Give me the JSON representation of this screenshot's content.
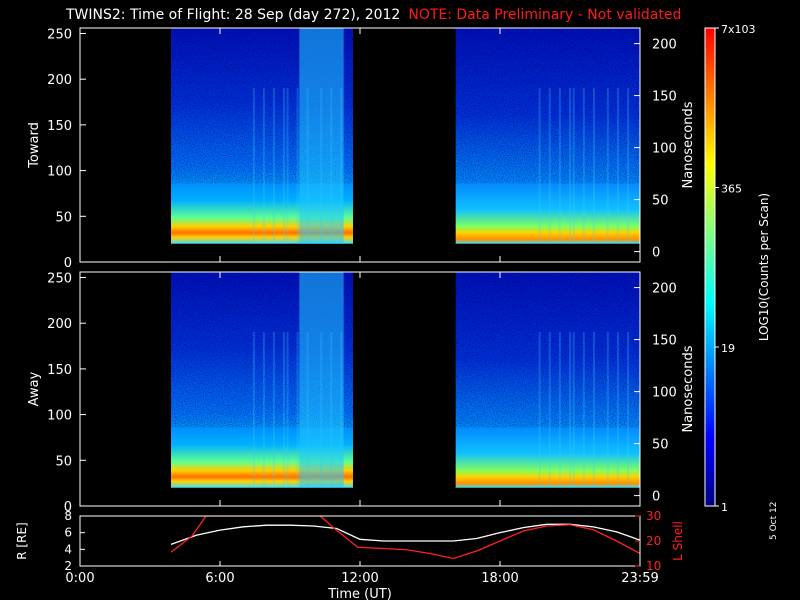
{
  "header": {
    "title": "TWINS2: Time of Flight: 28 Sep (day 272), 2012",
    "note": "NOTE: Data Preliminary - Not validated",
    "note_color": "#ff1a1a"
  },
  "stamp": "5 Oct 12",
  "panels": [
    {
      "ylabel": "Toward",
      "right_label": "Nanoseconds"
    },
    {
      "ylabel": "Away",
      "right_label": "Nanoseconds"
    }
  ],
  "colorbar": {
    "label": "LOG10(Counts per Scan)",
    "ticks": [
      "7x10^3",
      "365",
      "19",
      "1"
    ],
    "tick_values": [
      7000,
      365,
      19,
      1
    ],
    "colors": [
      "#000080",
      "#0000ff",
      "#0080ff",
      "#00ffff",
      "#80ff80",
      "#ffff00",
      "#ff8000",
      "#ff0000"
    ]
  },
  "ephem": {
    "left_label": "R [RE]",
    "right_label": "L Shell",
    "left_color": "#ffffff",
    "right_color": "#ff2020"
  },
  "xaxis": {
    "label": "Time (UT)",
    "tick_labels": [
      "0:00",
      "6:00",
      "12:00",
      "18:00",
      "23:59"
    ]
  },
  "chart_data": [
    {
      "type": "heatmap",
      "title": "Toward",
      "xlabel": "",
      "ylabel": "Toward",
      "y2label": "Nanoseconds",
      "xlim": [
        0,
        24
      ],
      "ylim": [
        0,
        256
      ],
      "y2lim": [
        -10,
        215
      ],
      "yticks": [
        0,
        50,
        100,
        150,
        200,
        250
      ],
      "y2ticks": [
        0,
        50,
        100,
        150,
        200
      ],
      "data_intervals_hours": [
        [
          3.9,
          11.7
        ],
        [
          16.1,
          24.0
        ]
      ],
      "colorscale": "log",
      "crange": [
        1,
        7000
      ]
    },
    {
      "type": "heatmap",
      "title": "Away",
      "xlabel": "",
      "ylabel": "Away",
      "y2label": "Nanoseconds",
      "xlim": [
        0,
        24
      ],
      "ylim": [
        0,
        256
      ],
      "y2lim": [
        -10,
        215
      ],
      "yticks": [
        0,
        50,
        100,
        150,
        200,
        250
      ],
      "y2ticks": [
        0,
        50,
        100,
        150,
        200
      ],
      "data_intervals_hours": [
        [
          3.9,
          11.7
        ],
        [
          16.1,
          24.0
        ]
      ],
      "colorscale": "log",
      "crange": [
        1,
        7000
      ]
    },
    {
      "type": "line",
      "xlabel": "Time (UT)",
      "ylabel": "R [RE]",
      "y2label": "L Shell",
      "xlim": [
        0,
        24
      ],
      "ylim": [
        2,
        8
      ],
      "yticks": [
        2,
        4,
        6,
        8
      ],
      "y2lim": [
        10,
        30
      ],
      "y2ticks": [
        10,
        20,
        30
      ],
      "series": [
        {
          "axis": "left",
          "color": "#ffffff",
          "x": [
            3.9,
            5,
            6,
            7,
            8,
            9,
            10,
            11,
            12,
            13,
            14,
            15,
            16,
            17,
            18,
            19,
            20,
            21,
            22,
            23,
            24
          ],
          "values": [
            4.6,
            5.7,
            6.3,
            6.7,
            6.9,
            6.9,
            6.8,
            6.5,
            5.2,
            5.0,
            5.0,
            5.0,
            5.0,
            5.3,
            6.0,
            6.6,
            7.0,
            7.0,
            6.7,
            6.1,
            5.1
          ]
        },
        {
          "axis": "right",
          "color": "#ff2020",
          "x": [
            3.9,
            4.8,
            5.4,
            10.3,
            10.9,
            11.9,
            13,
            14,
            15,
            16,
            17,
            18,
            19,
            20,
            21,
            22,
            23,
            24
          ],
          "values": [
            15.5,
            22,
            30,
            30,
            25,
            17.5,
            17.0,
            16.5,
            15,
            13,
            16,
            20,
            24,
            26,
            26.5,
            24.5,
            20,
            15
          ]
        }
      ]
    }
  ]
}
